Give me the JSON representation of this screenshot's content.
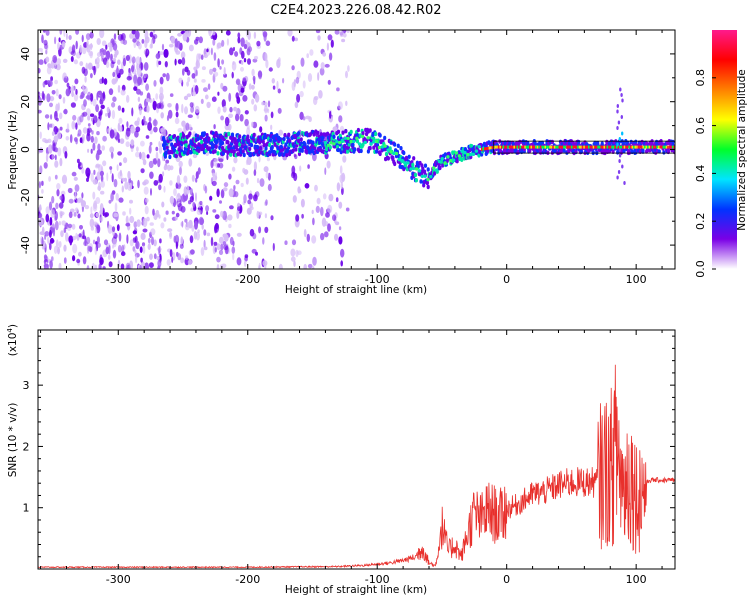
{
  "title": "C2E4.2023.226.08.42.R02",
  "colors": {
    "signal": "#e8302c",
    "frame": "#000000"
  },
  "chart_data": [
    {
      "type": "heatmap",
      "name": "spectrogram",
      "xlabel": "Height of straight line (km)",
      "ylabel": "Frequency (Hz)",
      "xlim": [
        -362,
        130
      ],
      "ylim": [
        -50,
        50
      ],
      "xticks": [
        -300,
        -200,
        -100,
        0,
        100
      ],
      "yticks": [
        -40,
        -20,
        0,
        20,
        40
      ],
      "xtick_labels": [
        "-300",
        "-200",
        "-100",
        "0",
        "100"
      ],
      "ytick_labels": [
        "-40",
        "-20",
        "0",
        "20",
        "40"
      ],
      "ridge": {
        "x": [
          -265,
          -250,
          -230,
          -210,
          -190,
          -170,
          -150,
          -130,
          -110,
          -100,
          -90,
          -80,
          -70,
          -60,
          -55,
          -50,
          -40,
          -30,
          -20,
          -10,
          0,
          20,
          40,
          60,
          80,
          90,
          100,
          110,
          130
        ],
        "freq": [
          1,
          2,
          3,
          2,
          2,
          2,
          3,
          3,
          4,
          3,
          -1,
          -4,
          -9,
          -12,
          -8,
          -5,
          -3,
          -1,
          0,
          1,
          1,
          1,
          1,
          1,
          1,
          1,
          1,
          1,
          1
        ]
      },
      "colorbar": {
        "label": "Normalized spectral amplitude",
        "range": [
          0,
          1
        ],
        "ticks": [
          0.0,
          0.2,
          0.4,
          0.6,
          0.8
        ],
        "tick_labels": [
          "0.0",
          "0.2",
          "0.4",
          "0.6",
          "0.8"
        ],
        "stops": [
          "#ffffff",
          "#7a00e6",
          "#0033ff",
          "#00e5ff",
          "#00ff2a",
          "#ffff00",
          "#ff8000",
          "#ff0000",
          "#ff1a8c"
        ]
      }
    },
    {
      "type": "line",
      "name": "snr",
      "xlabel": "Height of straight line (km)",
      "ylabel": "SNR (10 * v/v)",
      "yscale_label": "(x10",
      "yscale_exp": "4",
      "yscale_close": ")",
      "xlim": [
        -362,
        130
      ],
      "ylim": [
        0,
        3.9
      ],
      "xticks": [
        -300,
        -200,
        -100,
        0,
        100
      ],
      "yticks": [
        1,
        2,
        3
      ],
      "xtick_labels": [
        "-300",
        "-200",
        "-100",
        "0",
        "100"
      ],
      "ytick_labels": [
        "1",
        "2",
        "3"
      ],
      "series": [
        {
          "name": "SNR",
          "x": [
            -362,
            -300,
            -200,
            -130,
            -110,
            -100,
            -90,
            -80,
            -70,
            -65,
            -60,
            -55,
            -50,
            -45,
            -40,
            -35,
            -30,
            -25,
            -20,
            -15,
            -10,
            -5,
            0,
            10,
            20,
            30,
            40,
            50,
            60,
            70,
            75,
            80,
            85,
            90,
            95,
            100,
            105,
            110,
            120,
            130
          ],
          "y": [
            0.03,
            0.03,
            0.03,
            0.04,
            0.06,
            0.08,
            0.1,
            0.14,
            0.2,
            0.35,
            0.1,
            0.05,
            0.7,
            0.3,
            0.4,
            0.2,
            0.6,
            0.9,
            0.8,
            0.95,
            0.9,
            0.85,
            1.0,
            1.1,
            1.25,
            1.3,
            1.4,
            1.45,
            1.45,
            1.45,
            1.6,
            1.6,
            2.0,
            1.3,
            1.6,
            1.2,
            1.3,
            1.45,
            1.45,
            1.45
          ]
        }
      ]
    }
  ]
}
